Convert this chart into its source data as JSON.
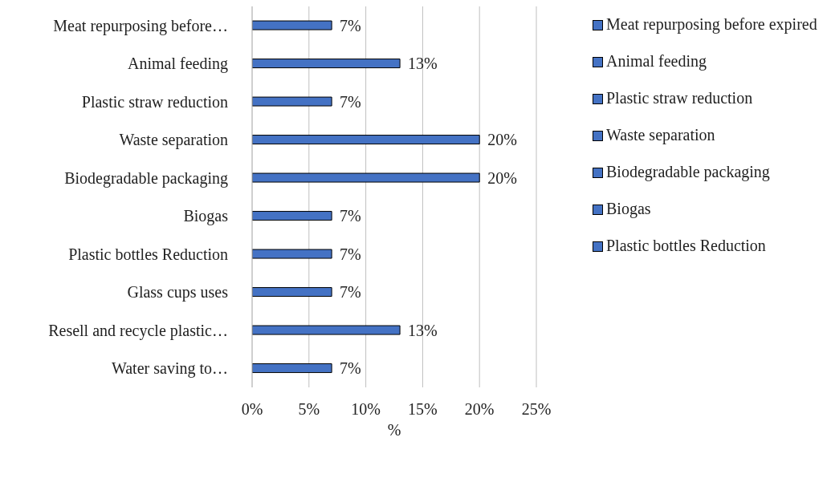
{
  "chart_data": {
    "type": "bar",
    "orientation": "horizontal",
    "stacked": true,
    "xlabel": "%",
    "categories": [
      "Meat repurposing before…",
      "Animal feeding",
      "Plastic straw reduction",
      "Waste separation",
      "Biodegradable packaging",
      "Biogas",
      "Plastic bottles Reduction",
      "Glass cups uses",
      "Resell and recycle plastic…",
      "Water saving  to…"
    ],
    "series": [
      {
        "name": "Meat repurposing before expired",
        "color": "#4472c4",
        "values": [
          7,
          null,
          null,
          null,
          null,
          null,
          null,
          null,
          null,
          null
        ],
        "value_labels": [
          "7%",
          null,
          null,
          null,
          null,
          null,
          null,
          null,
          null,
          null
        ]
      },
      {
        "name": "Animal feeding",
        "color": "#4472c4",
        "values": [
          null,
          13,
          null,
          null,
          null,
          null,
          null,
          null,
          null,
          null
        ],
        "value_labels": [
          null,
          "13%",
          null,
          null,
          null,
          null,
          null,
          null,
          null,
          null
        ]
      },
      {
        "name": "Plastic straw reduction",
        "color": "#4472c4",
        "values": [
          null,
          null,
          7,
          null,
          null,
          null,
          null,
          null,
          null,
          null
        ],
        "value_labels": [
          null,
          null,
          "7%",
          null,
          null,
          null,
          null,
          null,
          null,
          null
        ]
      },
      {
        "name": "Waste separation",
        "color": "#4472c4",
        "values": [
          null,
          null,
          null,
          20,
          null,
          null,
          null,
          null,
          null,
          null
        ],
        "value_labels": [
          null,
          null,
          null,
          "20%",
          null,
          null,
          null,
          null,
          null,
          null
        ]
      },
      {
        "name": "Biodegradable packaging",
        "color": "#4472c4",
        "values": [
          null,
          null,
          null,
          null,
          20,
          null,
          null,
          null,
          null,
          null
        ],
        "value_labels": [
          null,
          null,
          null,
          null,
          "20%",
          null,
          null,
          null,
          null,
          null
        ]
      },
      {
        "name": "Biogas",
        "color": "#4472c4",
        "values": [
          null,
          null,
          null,
          null,
          null,
          7,
          null,
          null,
          null,
          null
        ],
        "value_labels": [
          null,
          null,
          null,
          null,
          null,
          "7%",
          null,
          null,
          null,
          null
        ]
      },
      {
        "name": "Plastic bottles Reduction",
        "color": "#4472c4",
        "values": [
          null,
          null,
          null,
          null,
          null,
          null,
          7,
          null,
          null,
          null
        ],
        "value_labels": [
          null,
          null,
          null,
          null,
          null,
          null,
          "7%",
          null,
          null,
          null
        ]
      },
      {
        "color": "#4472c4",
        "values": [
          null,
          null,
          null,
          null,
          null,
          null,
          null,
          7,
          null,
          null
        ],
        "value_labels": [
          null,
          null,
          null,
          null,
          null,
          null,
          null,
          "7%",
          null,
          null
        ]
      },
      {
        "color": "#4472c4",
        "values": [
          null,
          null,
          null,
          null,
          null,
          null,
          null,
          null,
          13,
          null
        ],
        "value_labels": [
          null,
          null,
          null,
          null,
          null,
          null,
          null,
          null,
          "13%",
          null
        ]
      },
      {
        "color": "#4472c4",
        "values": [
          null,
          null,
          null,
          null,
          null,
          null,
          null,
          null,
          null,
          7
        ],
        "value_labels": [
          null,
          null,
          null,
          null,
          null,
          null,
          null,
          null,
          null,
          "7%"
        ]
      }
    ],
    "xlim": [
      0,
      25
    ],
    "xticks": [
      {
        "value": 0,
        "label": "0%"
      },
      {
        "value": 5,
        "label": "5%"
      },
      {
        "value": 10,
        "label": "10%"
      },
      {
        "value": 15,
        "label": "15%"
      },
      {
        "value": 20,
        "label": "20%"
      },
      {
        "value": 25,
        "label": "25%"
      }
    ],
    "grid": "x",
    "legend": "right"
  }
}
